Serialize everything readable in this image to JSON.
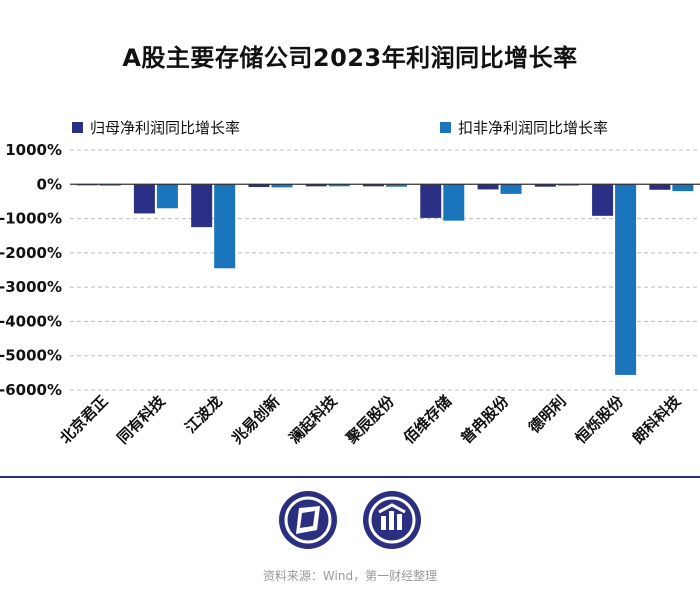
{
  "title": "A股主要存储公司2023年利润同比增长率",
  "source": "资料来源：Wind，第一财经整理",
  "colors": {
    "series1": "#2b2f86",
    "series2": "#1b75bc",
    "grid": "#bbbbbb",
    "axis": "#333333",
    "brand": "#2b2f7f"
  },
  "logos": [
    {
      "name": "publisher-logo-icon"
    },
    {
      "name": "data-logo-icon"
    }
  ],
  "chart_data": {
    "type": "bar",
    "title": "A股主要存储公司2023年利润同比增长率",
    "categories": [
      "北京君正",
      "同有科技",
      "江波龙",
      "兆易创新",
      "澜起科技",
      "聚辰股份",
      "佰维存储",
      "普冉股份",
      "德明利",
      "恒烁股份",
      "朗科科技"
    ],
    "series": [
      {
        "name": "归母净利润同比增长率",
        "values": [
          -30,
          -850,
          -1250,
          -80,
          -60,
          -60,
          -980,
          -150,
          -70,
          -920,
          -160
        ]
      },
      {
        "name": "扣非净利润同比增长率",
        "values": [
          -40,
          -700,
          -2450,
          -90,
          -60,
          -70,
          -1060,
          -280,
          -40,
          -5560,
          -200
        ]
      }
    ],
    "yticks": [
      1000,
      0,
      -1000,
      -2000,
      -3000,
      -4000,
      -5000,
      -6000
    ],
    "ytick_labels": [
      "1000%",
      "0%",
      "-1000%",
      "-2000%",
      "-3000%",
      "-4000%",
      "-5000%",
      "-6000%"
    ],
    "ylim": [
      -6000,
      1000
    ],
    "xlabel": "",
    "ylabel": "",
    "legend": "top",
    "grid": true
  }
}
